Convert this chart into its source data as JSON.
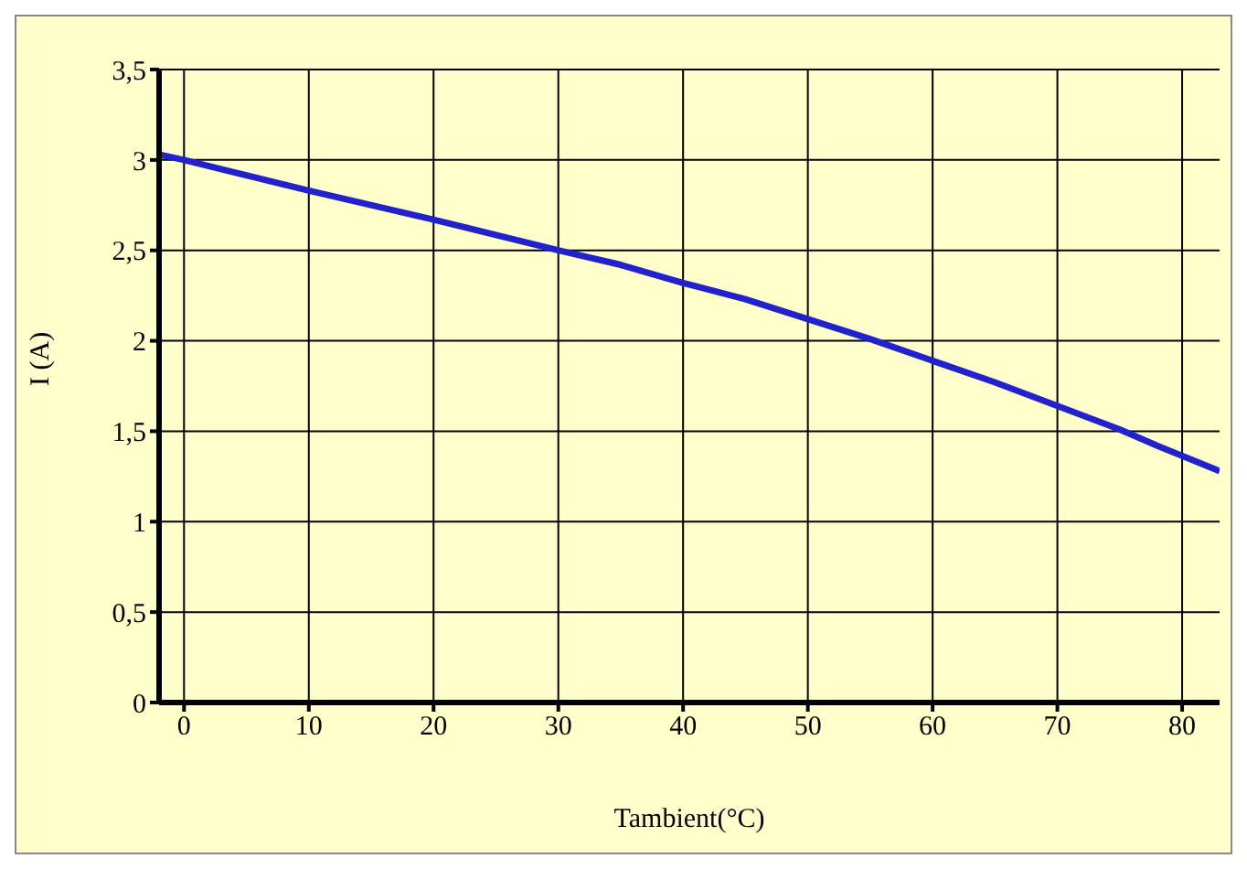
{
  "chart_data": {
    "type": "line",
    "xlabel": "Tambient(°C)",
    "ylabel": "I (A)",
    "x": [
      -2,
      0,
      10,
      20,
      30,
      35,
      40,
      45,
      50,
      55,
      60,
      65,
      70,
      75,
      78,
      83
    ],
    "series": [
      {
        "color": "#2222cc",
        "values": [
          3.03,
          3.0,
          2.83,
          2.67,
          2.5,
          2.42,
          2.32,
          2.23,
          2.12,
          2.01,
          1.89,
          1.77,
          1.64,
          1.51,
          1.42,
          1.28
        ]
      }
    ],
    "xlim": [
      -2,
      83
    ],
    "ylim": [
      0,
      3.5
    ],
    "xticks": [
      0,
      10,
      20,
      30,
      40,
      50,
      60,
      70,
      80
    ],
    "yticks": [
      0,
      {
        "value": 0.5,
        "label": "0,5"
      },
      1,
      {
        "value": 1.5,
        "label": "1,5"
      },
      2,
      {
        "value": 2.5,
        "label": "2,5"
      },
      3,
      {
        "value": 3.5,
        "label": "3,5"
      }
    ],
    "grid": true,
    "legend": false,
    "marker": "none",
    "line_style": "solid"
  }
}
